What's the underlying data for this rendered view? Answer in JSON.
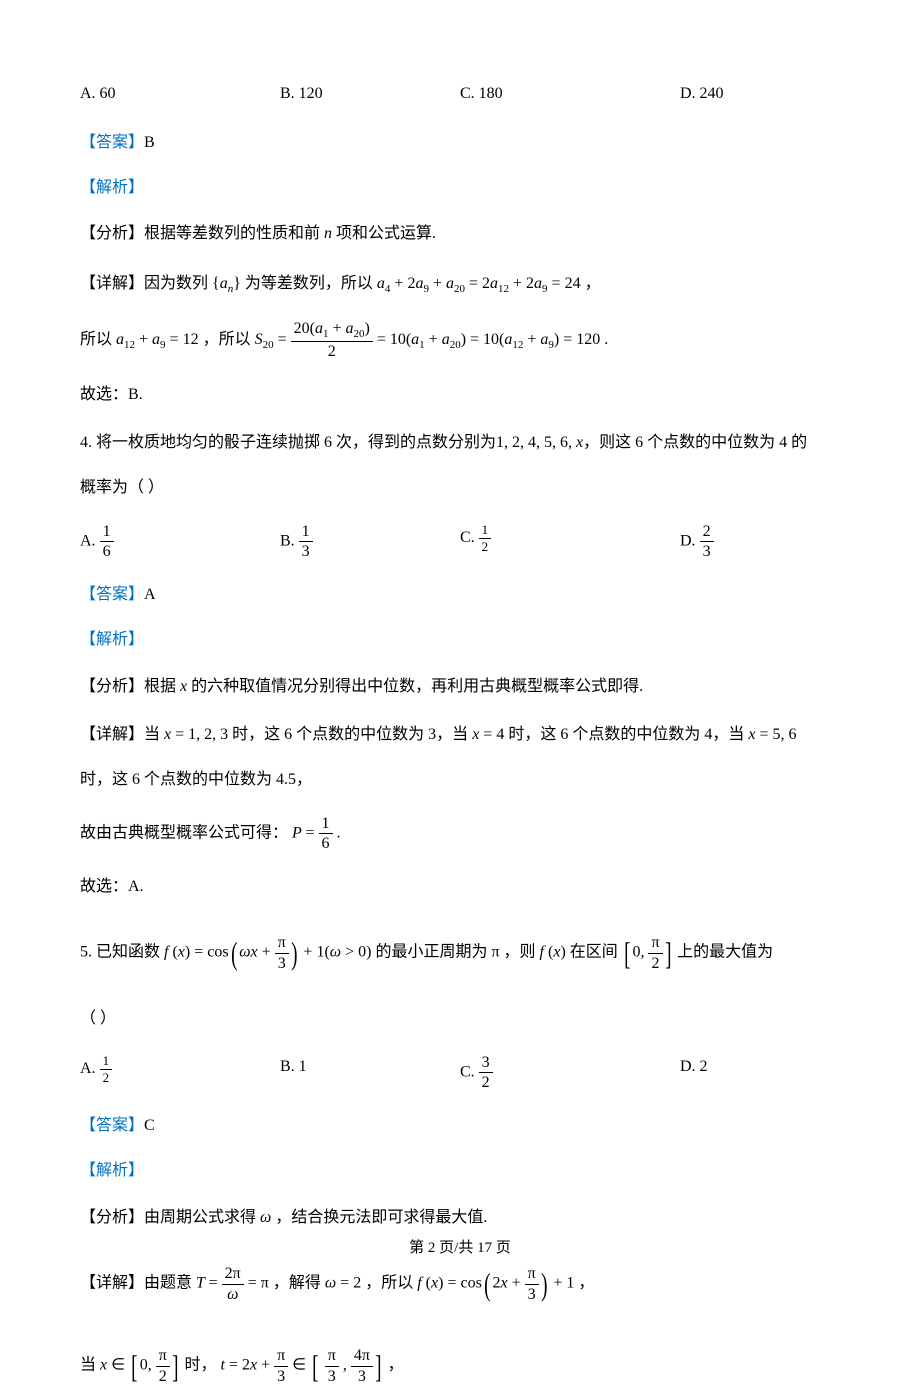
{
  "q3": {
    "choices": {
      "A": "A. 60",
      "B": "B. 120",
      "C": "C. 180",
      "D": "D. 240"
    },
    "answer_label": "【答案】",
    "answer": "B",
    "analysis_label": "【解析】",
    "fenxi_label": "【分析】",
    "fenxi_text": "根据等差数列的性质和前",
    "fenxi_text2": "项和公式运算.",
    "n_var": "n",
    "detail_label": "【详解】",
    "detail_text1": "因为数列",
    "detail_seq": "a",
    "detail_text2": "为等差数列，所以",
    "eq1": "a₄ + 2a₉ + a₂₀ = 2a₁₂ + 2a₉ = 24",
    "line2_pre": "所以",
    "eq2a": "a₁₂ + a₉ = 12",
    "line2_mid": "，所以",
    "S20": "S",
    "eq2_frac_num": "20(a₁ + a₂₀)",
    "eq2_frac_den": "2",
    "eq2_tail": " = 10(a₁ + a₂₀) = 10(a₁₂ + a₉) = 120",
    "conclusion": "故选：B."
  },
  "q4": {
    "stem_pre": "4. 将一枚质地均匀的骰子连续抛掷 6 次，得到的点数分别为",
    "stem_vals": "1, 2, 4, 5, 6, x",
    "stem_post": "，则这 6 个点数的中位数为 4 的",
    "stem_line2": "概率为（    ）",
    "choices": {
      "A": "A.",
      "B": "B.",
      "C": "C.",
      "D": "D."
    },
    "fracA_num": "1",
    "fracA_den": "6",
    "fracB_num": "1",
    "fracB_den": "3",
    "fracC_num": "1",
    "fracC_den": "2",
    "fracD_num": "2",
    "fracD_den": "3",
    "answer_label": "【答案】",
    "answer": "A",
    "analysis_label": "【解析】",
    "fenxi_label": "【分析】",
    "fenxi_text": "根据",
    "fenxi_var": "x",
    "fenxi_text2": "的六种取值情况分别得出中位数，再利用古典概型概率公式即得.",
    "detail_label": "【详解】",
    "detail_text1": "当",
    "eq_x123": "x = 1, 2, 3",
    "detail_text2": "时，这 6 个点数的中位数为 3，当",
    "eq_x4": "x = 4",
    "detail_text3": "时，这 6 个点数的中位数为 4，当",
    "eq_x56": "x = 5, 6",
    "detail_line2": "时，这 6 个点数的中位数为 4.5，",
    "detail_line3": "故由古典概型概率公式可得：",
    "P_var": "P",
    "P_num": "1",
    "P_den": "6",
    "conclusion": "故选：A."
  },
  "q5": {
    "stem_pre": "5. 已知函数",
    "fx": "f (x) = cos",
    "omega_x": "ωx",
    "pi": "π",
    "three": "3",
    "plus1": " + 1(ω > 0)",
    "stem_mid": "的最小正周期为",
    "pi_sym": "π",
    "stem_post": "，则",
    "fx2": "f (x)",
    "stem_post2": "在区间",
    "zero": "0",
    "two": "2",
    "stem_post3": "上的最大值为",
    "stem_line2": "（    ）",
    "choices": {
      "A": "A.",
      "B": "B. 1",
      "C": "C.",
      "D": "D. 2"
    },
    "fracA_num": "1",
    "fracA_den": "2",
    "fracC_num": "3",
    "fracC_den": "2",
    "answer_label": "【答案】",
    "answer": "C",
    "analysis_label": "【解析】",
    "fenxi_label": "【分析】",
    "fenxi_text": "由周期公式求得",
    "omega": "ω",
    "fenxi_text2": "，结合换元法即可求得最大值.",
    "detail_label": "【详解】",
    "detail_text1": "由题意",
    "T_eq": "T",
    "T_num": "2π",
    "T_den": "ω",
    "eq_pi": " = π",
    "detail_text2": "，解得",
    "omega2": "ω = 2",
    "detail_text3": "，所以",
    "fx_full": "f (x) = cos",
    "inner2x": "2x",
    "plus1_2": " + 1",
    "line2_pre": "当",
    "x_in": "x ∈",
    "line2_mid": "时，",
    "t_eq": "t = 2x + ",
    "in_sym": " ∈ ",
    "four": "4"
  },
  "footer": {
    "text_pre": "第",
    "page": "2",
    "text_mid": "页/共",
    "total": "17",
    "text_post": "页"
  }
}
